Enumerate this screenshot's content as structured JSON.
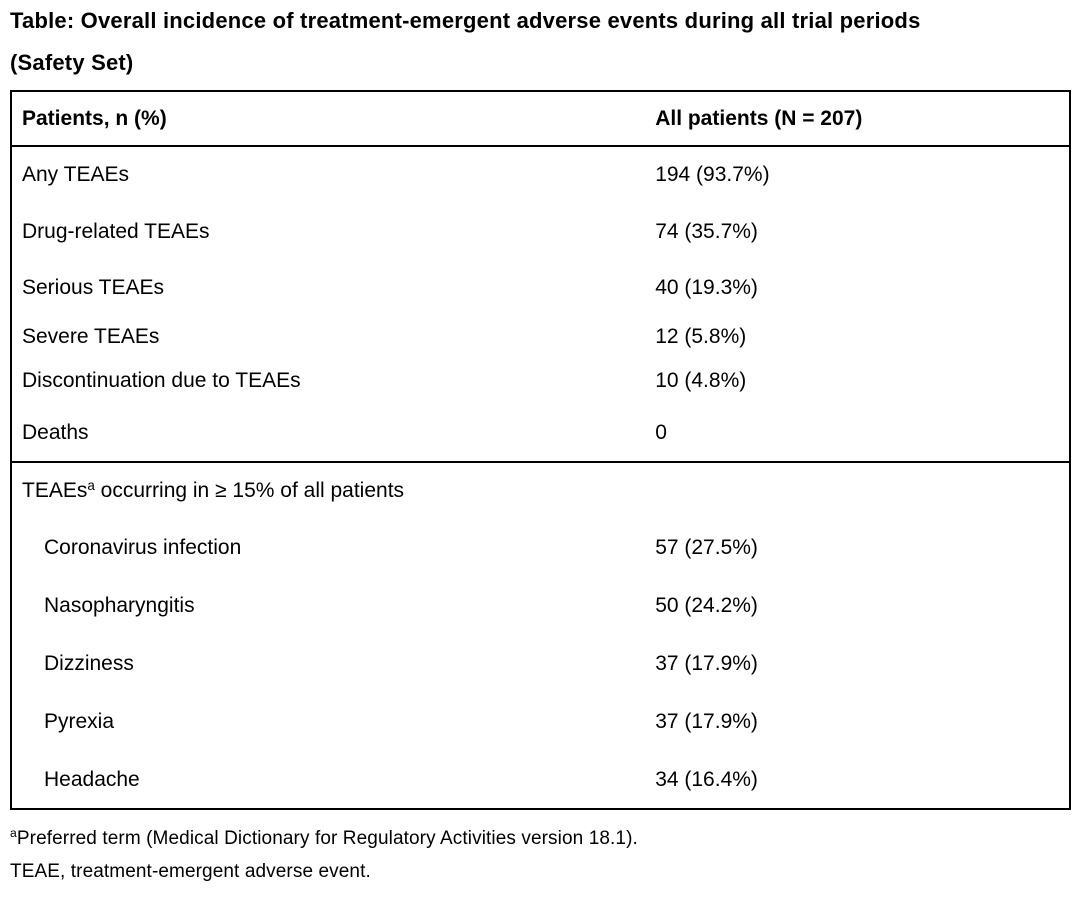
{
  "title": {
    "line1": "Table: Overall incidence of treatment-emergent adverse events during all trial periods",
    "line2": "(Safety Set)"
  },
  "table": {
    "header": {
      "col1": "Patients, n (%)",
      "col2": "All patients (N = 207)"
    },
    "rows": [
      {
        "label": "Any TEAEs",
        "value": "194 (93.7%)"
      },
      {
        "label": "Drug-related TEAEs",
        "value": "74 (35.7%)"
      },
      {
        "label": "Serious TEAEs",
        "value": "40 (19.3%)"
      },
      {
        "label": "Severe TEAEs",
        "value": "12 (5.8%)"
      },
      {
        "label": "Discontinuation due to TEAEs",
        "value": "10 (4.8%)"
      },
      {
        "label": "Deaths",
        "value": "0"
      }
    ],
    "section": {
      "header": {
        "text_before_sup": "TEAEs",
        "sup": "a",
        "text_after_sup": " occurring in ≥ 15% of all patients"
      },
      "rows": [
        {
          "label": "Coronavirus infection",
          "value": "57 (27.5%)"
        },
        {
          "label": "Nasopharyngitis",
          "value": "50 (24.2%)"
        },
        {
          "label": "Dizziness",
          "value": "37 (17.9%)"
        },
        {
          "label": "Pyrexia",
          "value": "37 (17.9%)"
        },
        {
          "label": "Headache",
          "value": "34 (16.4%)"
        }
      ]
    }
  },
  "footnotes": [
    {
      "sup": "a",
      "text": "Preferred term (Medical Dictionary for Regulatory Activities version 18.1)."
    },
    {
      "sup": "",
      "text": "TEAE, treatment-emergent adverse event."
    }
  ],
  "colors": {
    "text": "#000000",
    "border": "#000000",
    "background": "#ffffff"
  }
}
